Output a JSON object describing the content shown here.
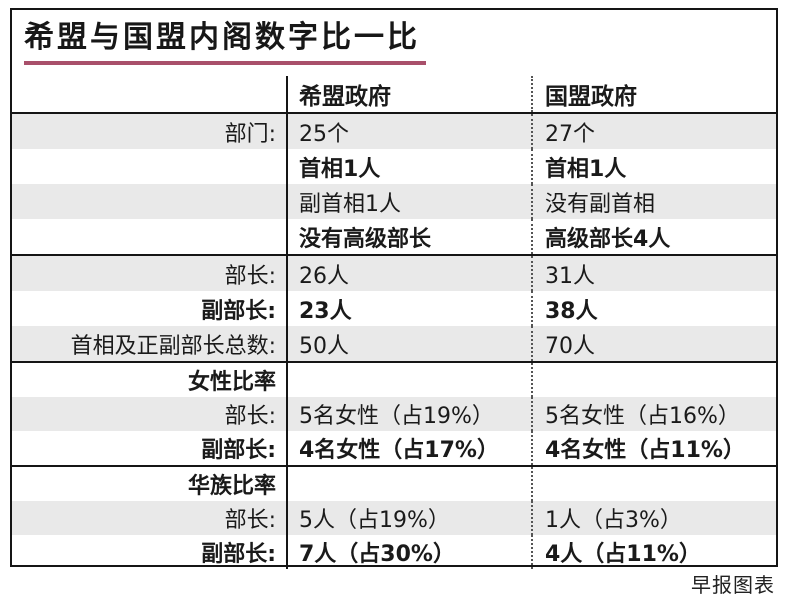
{
  "title": "希盟与国盟内阁数字比一比",
  "credit": "早报图表",
  "colors": {
    "title_underline": "#a9506b",
    "row_stripe": "#e9e9e9",
    "border": "#151515",
    "text": "#1a1a1a"
  },
  "chart_data": {
    "type": "table",
    "title": "希盟与国盟内阁数字比一比",
    "columns": [
      "",
      "希盟政府",
      "国盟政府"
    ],
    "sections": [
      {
        "rows": [
          {
            "label": "部门:",
            "ph": "25个",
            "pn": "27个",
            "bold": false,
            "shaded": true
          },
          {
            "label": "",
            "ph": "首相1人",
            "pn": "首相1人",
            "bold": true,
            "shaded": false
          },
          {
            "label": "",
            "ph": "副首相1人",
            "pn": "没有副首相",
            "bold": false,
            "shaded": true
          },
          {
            "label": "",
            "ph": "没有高级部长",
            "pn": "高级部长4人",
            "bold": true,
            "shaded": false
          }
        ]
      },
      {
        "rows": [
          {
            "label": "部长:",
            "ph": "26人",
            "pn": "31人",
            "bold": false,
            "shaded": true
          },
          {
            "label": "副部长:",
            "ph": "23人",
            "pn": "38人",
            "bold": true,
            "shaded": false
          },
          {
            "label": "首相及正副部长总数:",
            "ph": "50人",
            "pn": "70人",
            "bold": false,
            "shaded": true
          }
        ]
      },
      {
        "rows": [
          {
            "label": "女性比率",
            "ph": "",
            "pn": "",
            "bold": true,
            "shaded": false
          },
          {
            "label": "部长:",
            "ph": "5名女性（占19%）",
            "pn": "5名女性（占16%）",
            "bold": false,
            "shaded": true
          },
          {
            "label": "副部长:",
            "ph": "4名女性（占17%）",
            "pn": "4名女性（占11%）",
            "bold": true,
            "shaded": false
          }
        ]
      },
      {
        "rows": [
          {
            "label": "华族比率",
            "ph": "",
            "pn": "",
            "bold": true,
            "shaded": false
          },
          {
            "label": "部长:",
            "ph": "5人（占19%）",
            "pn": "1人（占3%）",
            "bold": false,
            "shaded": true
          },
          {
            "label": "副部长:",
            "ph": "7人（占30%）",
            "pn": "4人（占11%）",
            "bold": true,
            "shaded": false
          }
        ]
      }
    ]
  }
}
